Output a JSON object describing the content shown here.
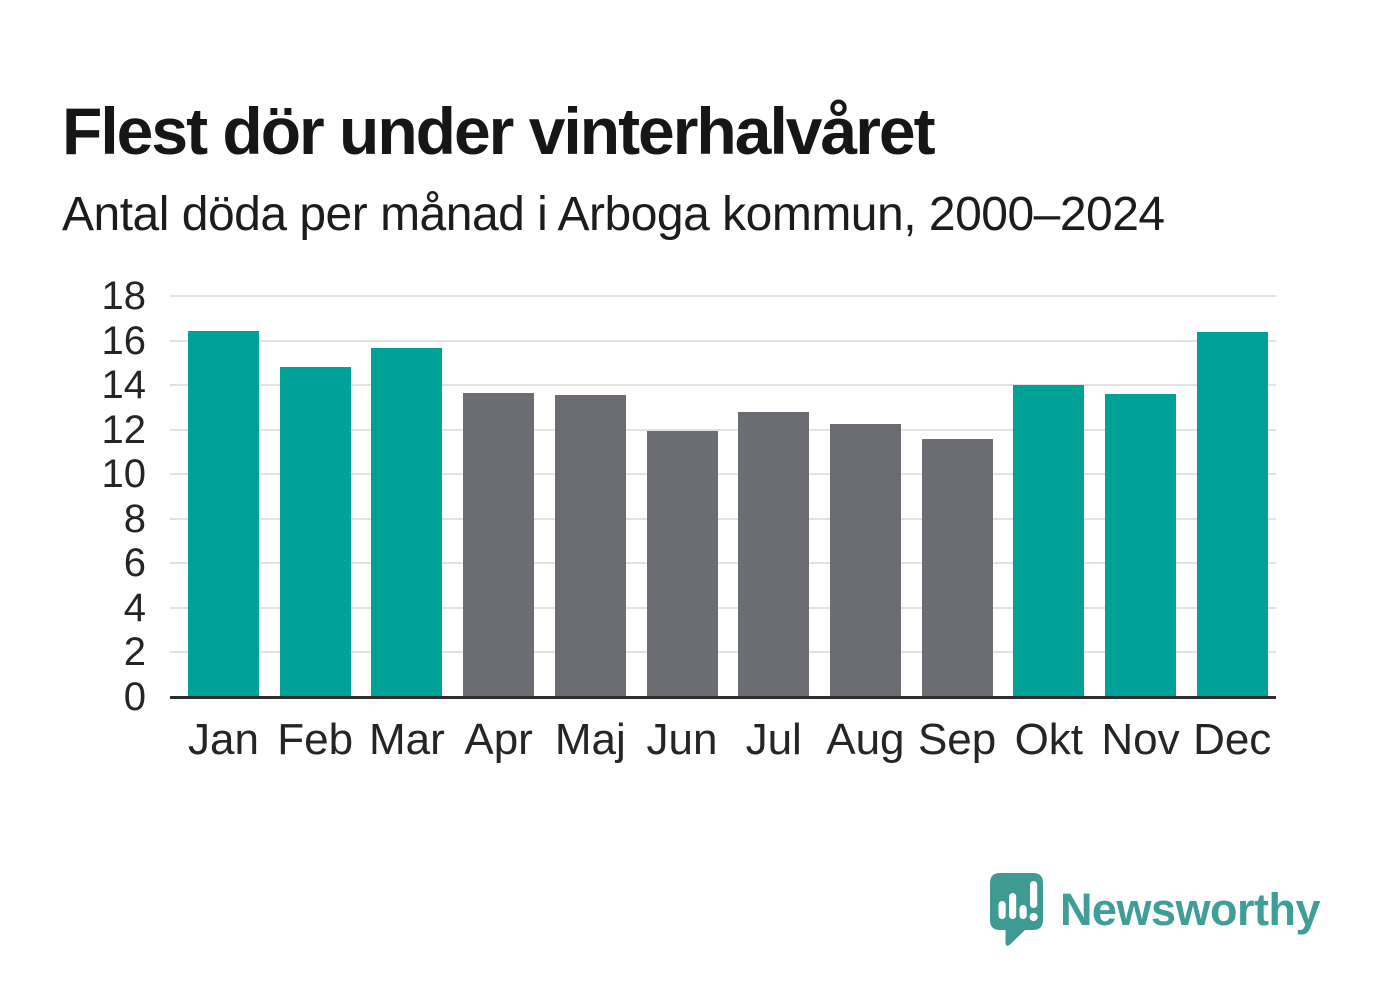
{
  "chart_data": {
    "type": "bar",
    "title": "Flest dör under vinterhalvåret",
    "subtitle": "Antal döda per månad i Arboga kommun, 2000–2024",
    "categories": [
      "Jan",
      "Feb",
      "Mar",
      "Apr",
      "Maj",
      "Jun",
      "Jul",
      "Aug",
      "Sep",
      "Okt",
      "Nov",
      "Dec"
    ],
    "values": [
      16.45,
      14.8,
      15.65,
      13.65,
      13.55,
      11.95,
      12.8,
      12.25,
      11.6,
      14.0,
      13.6,
      16.4
    ],
    "bar_colors": [
      "#00a298",
      "#00a298",
      "#00a298",
      "#6c6c73",
      "#6c6c73",
      "#6c6c73",
      "#6c6c73",
      "#6c6c73",
      "#6c6c73",
      "#00a298",
      "#00a298",
      "#00a298"
    ],
    "highlight_color": "#00a298",
    "muted_color": "#6c6c73",
    "gridline_color": "#e2e2e2",
    "axis_line_color": "#2d2d2d",
    "xlabel": "",
    "ylabel": "",
    "ylim": [
      0,
      18
    ],
    "yticks": [
      0,
      2,
      4,
      6,
      8,
      10,
      12,
      14,
      16,
      18
    ],
    "grid": true,
    "legend": "none"
  },
  "branding": {
    "logo_text": "Newsworthy",
    "logo_color": "#3f9e98",
    "logo_icon_color": "#3d9b93",
    "logo_icon": "speech-bubble-bar-chart-exclamation"
  }
}
